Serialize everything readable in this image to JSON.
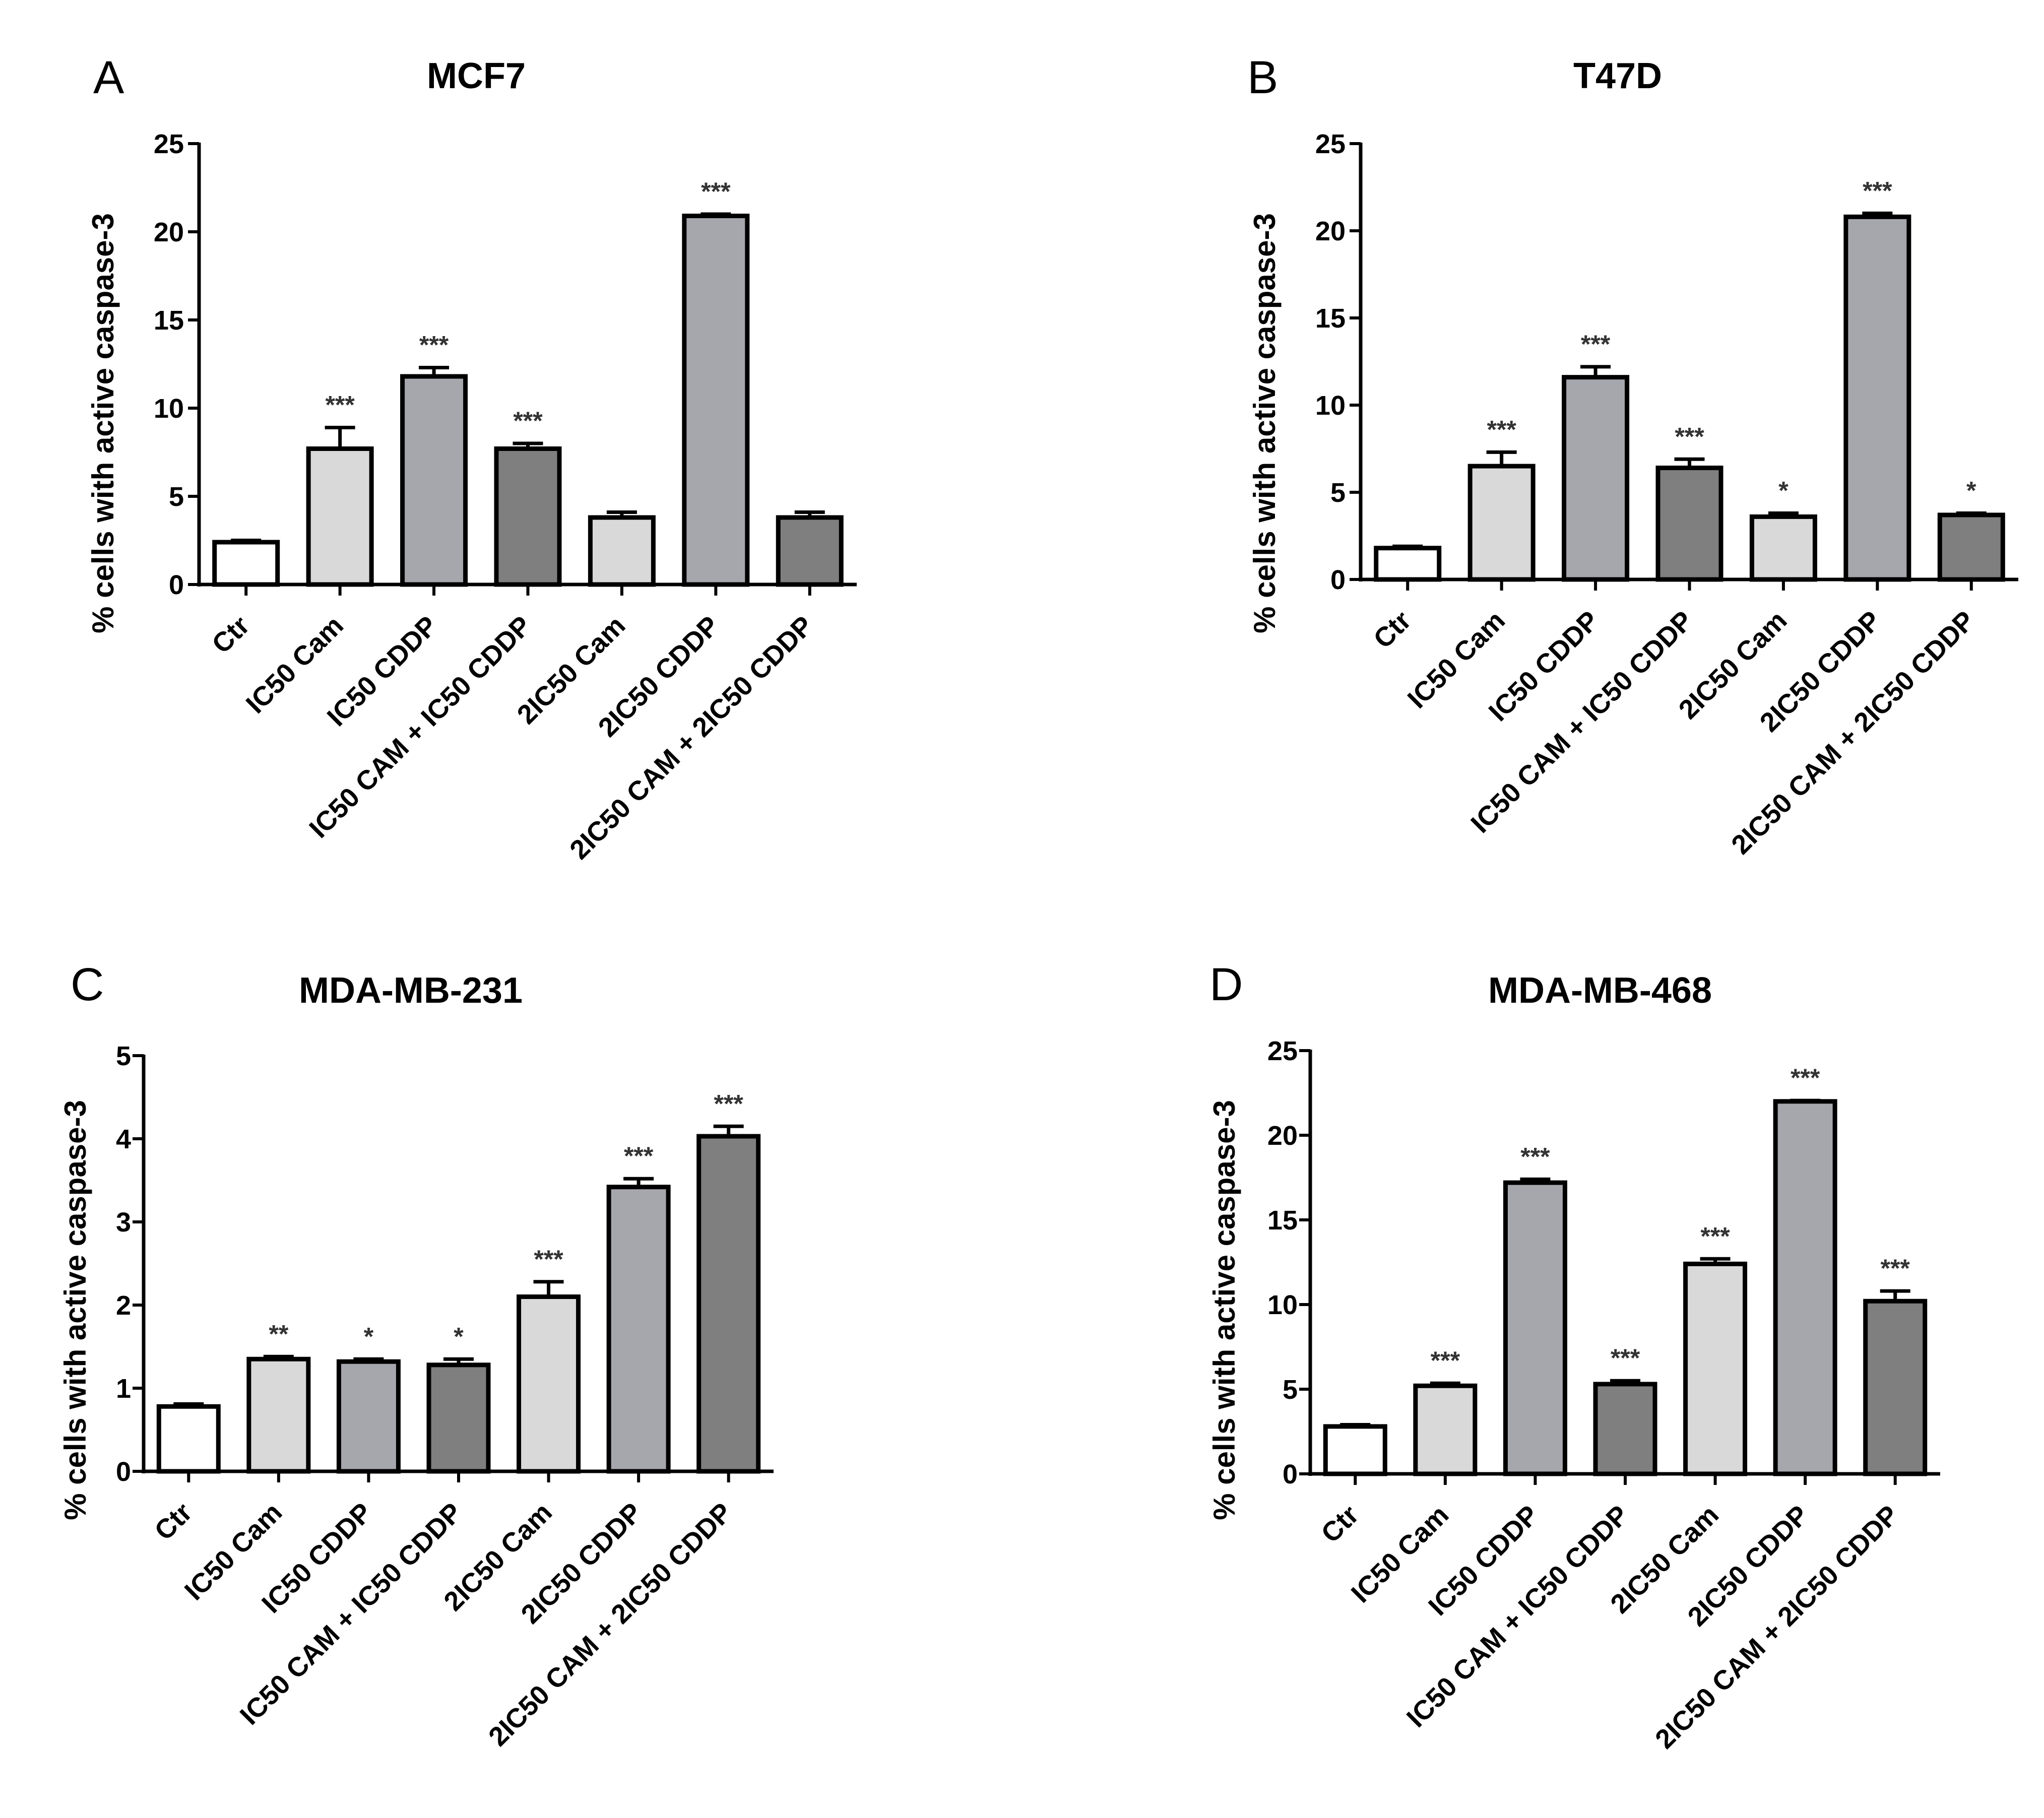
{
  "figure": {
    "colors": {
      "ctr": "#ffffff",
      "cam": "#d9d9d9",
      "cddp": "#a6a6ad",
      "combo": "#7f7f7f",
      "stroke": "#000000",
      "significance": "#333333"
    },
    "bar_color_keys": [
      "ctr",
      "cam",
      "cddp",
      "combo",
      "cam",
      "cddp",
      "combo"
    ]
  },
  "chart_data": [
    {
      "type": "bar",
      "panel_letter": "A",
      "title": "MCF7",
      "xlabel": "",
      "ylabel": "% cells with active caspase-3",
      "ylim": [
        0,
        25
      ],
      "yticks": [
        "0",
        "5",
        "10",
        "15",
        "20",
        "25"
      ],
      "categories": [
        "Ctr",
        "IC50 Cam",
        "IC50 CDDP",
        "IC50 CAM + IC50 CDDP",
        "2IC50 Cam",
        "2IC50 CDDP",
        "2IC50 CAM + 2IC50 CDDP"
      ],
      "values": [
        2.4,
        7.7,
        11.8,
        7.7,
        3.8,
        20.9,
        3.8
      ],
      "errors": [
        0.1,
        1.2,
        0.5,
        0.3,
        0.3,
        0.1,
        0.3
      ],
      "significance": [
        "",
        "***",
        "***",
        "***",
        "",
        "***",
        ""
      ]
    },
    {
      "type": "bar",
      "panel_letter": "B",
      "title": "T47D",
      "xlabel": "",
      "ylabel": "% cells with active caspase-3",
      "ylim": [
        0,
        25
      ],
      "yticks": [
        "0",
        "5",
        "10",
        "15",
        "20",
        "25"
      ],
      "categories": [
        "Ctr",
        "IC50 Cam",
        "IC50 CDDP",
        "IC50 CAM + IC50 CDDP",
        "2IC50 Cam",
        "2IC50 CDDP",
        "2IC50 CAM + 2IC50 CDDP"
      ],
      "values": [
        1.8,
        6.5,
        11.6,
        6.4,
        3.6,
        20.8,
        3.7
      ],
      "errors": [
        0.1,
        0.8,
        0.6,
        0.5,
        0.2,
        0.2,
        0.1
      ],
      "significance": [
        "",
        "***",
        "***",
        "***",
        "*",
        "***",
        "*"
      ]
    },
    {
      "type": "bar",
      "panel_letter": "C",
      "title": "MDA-MB-231",
      "xlabel": "",
      "ylabel": "% cells with active caspase-3",
      "ylim": [
        0,
        5
      ],
      "yticks": [
        "0",
        "1",
        "2",
        "3",
        "4",
        "5"
      ],
      "categories": [
        "Ctr",
        "IC50 Cam",
        "IC50 CDDP",
        "IC50 CAM + IC50 CDDP",
        "2IC50 Cam",
        "2IC50 CDDP",
        "2IC50 CAM + 2IC50 CDDP"
      ],
      "values": [
        0.78,
        1.35,
        1.32,
        1.28,
        2.1,
        3.42,
        4.03
      ],
      "errors": [
        0.03,
        0.03,
        0.03,
        0.07,
        0.18,
        0.1,
        0.12
      ],
      "significance": [
        "",
        "**",
        "*",
        "*",
        "***",
        "***",
        "***"
      ]
    },
    {
      "type": "bar",
      "panel_letter": "D",
      "title": "MDA-MB-468",
      "xlabel": "",
      "ylabel": "% cells with active caspase-3",
      "ylim": [
        0,
        25
      ],
      "yticks": [
        "0",
        "5",
        "10",
        "15",
        "20",
        "25"
      ],
      "categories": [
        "Ctr",
        "IC50 Cam",
        "IC50 CDDP",
        "IC50 CAM + IC50 CDDP",
        "2IC50 Cam",
        "2IC50 CDDP",
        "2IC50 CAM + 2IC50 CDDP"
      ],
      "values": [
        2.8,
        5.2,
        17.2,
        5.3,
        12.4,
        22.0,
        10.2
      ],
      "errors": [
        0.1,
        0.15,
        0.2,
        0.2,
        0.3,
        0.05,
        0.6
      ],
      "significance": [
        "",
        "***",
        "***",
        "***",
        "***",
        "***",
        "***"
      ]
    }
  ]
}
